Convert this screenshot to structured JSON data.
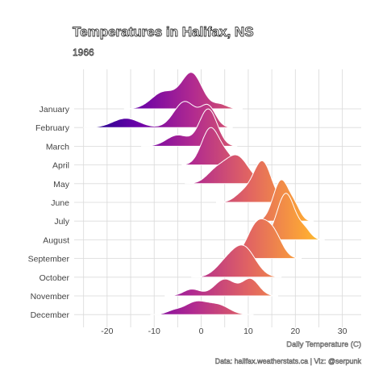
{
  "chart_data": {
    "type": "ridgeline",
    "title": "Temperatures in Halifax, NS",
    "subtitle": "1966",
    "xlabel": "Daily Temperature (C)",
    "ylabel": "",
    "caption": "Data: halifax.weatherstats.ca | Viz: @serpunk",
    "xlim": [
      -27,
      34
    ],
    "x_ticks": [
      -20,
      -10,
      0,
      10,
      20,
      30
    ],
    "grid": true,
    "legend": "none",
    "color_scale": [
      "#0d0887",
      "#6a00a8",
      "#b12a90",
      "#e16462",
      "#fca636",
      "#f0f921"
    ],
    "series": [
      {
        "name": "January",
        "peaks": [
          {
            "x": -2.0,
            "h": 0.95,
            "s": 2.2
          },
          {
            "x": -8.0,
            "h": 0.45,
            "s": 2.6
          },
          {
            "x": 4.0,
            "h": 0.12,
            "s": 1.5
          }
        ]
      },
      {
        "name": "February",
        "peaks": [
          {
            "x": -3.5,
            "h": 0.7,
            "s": 2.3
          },
          {
            "x": 1.5,
            "h": 0.55,
            "s": 1.6
          },
          {
            "x": -16.0,
            "h": 0.25,
            "s": 2.8
          }
        ]
      },
      {
        "name": "March",
        "peaks": [
          {
            "x": 1.5,
            "h": 1.0,
            "s": 1.9
          },
          {
            "x": -5.0,
            "h": 0.3,
            "s": 2.4
          }
        ]
      },
      {
        "name": "April",
        "peaks": [
          {
            "x": 2.0,
            "h": 1.0,
            "s": 1.9
          },
          {
            "x": 5.5,
            "h": 0.2,
            "s": 1.4
          }
        ]
      },
      {
        "name": "May",
        "peaks": [
          {
            "x": 7.5,
            "h": 0.75,
            "s": 2.5
          },
          {
            "x": 3.0,
            "h": 0.3,
            "s": 2.0
          }
        ]
      },
      {
        "name": "June",
        "peaks": [
          {
            "x": 13.0,
            "h": 1.1,
            "s": 1.9
          },
          {
            "x": 9.0,
            "h": 0.25,
            "s": 1.8
          }
        ]
      },
      {
        "name": "July",
        "peaks": [
          {
            "x": 17.0,
            "h": 1.1,
            "s": 1.7
          },
          {
            "x": 20.0,
            "h": 0.3,
            "s": 1.2
          }
        ]
      },
      {
        "name": "August",
        "peaks": [
          {
            "x": 18.0,
            "h": 1.25,
            "s": 1.9
          },
          {
            "x": 22.0,
            "h": 0.25,
            "s": 1.3
          }
        ]
      },
      {
        "name": "September",
        "peaks": [
          {
            "x": 12.0,
            "h": 0.95,
            "s": 2.2
          },
          {
            "x": 15.5,
            "h": 0.55,
            "s": 1.8
          }
        ]
      },
      {
        "name": "October",
        "peaks": [
          {
            "x": 9.0,
            "h": 0.8,
            "s": 2.5
          },
          {
            "x": 5.0,
            "h": 0.3,
            "s": 2.2
          }
        ]
      },
      {
        "name": "November",
        "peaks": [
          {
            "x": 5.0,
            "h": 0.45,
            "s": 2.2
          },
          {
            "x": 10.5,
            "h": 0.45,
            "s": 1.8
          },
          {
            "x": -2.0,
            "h": 0.18,
            "s": 1.8
          }
        ]
      },
      {
        "name": "December",
        "peaks": [
          {
            "x": -1.0,
            "h": 0.35,
            "s": 2.6
          },
          {
            "x": 4.0,
            "h": 0.22,
            "s": 2.2
          },
          {
            "x": -6.0,
            "h": 0.08,
            "s": 1.5
          }
        ]
      }
    ]
  }
}
